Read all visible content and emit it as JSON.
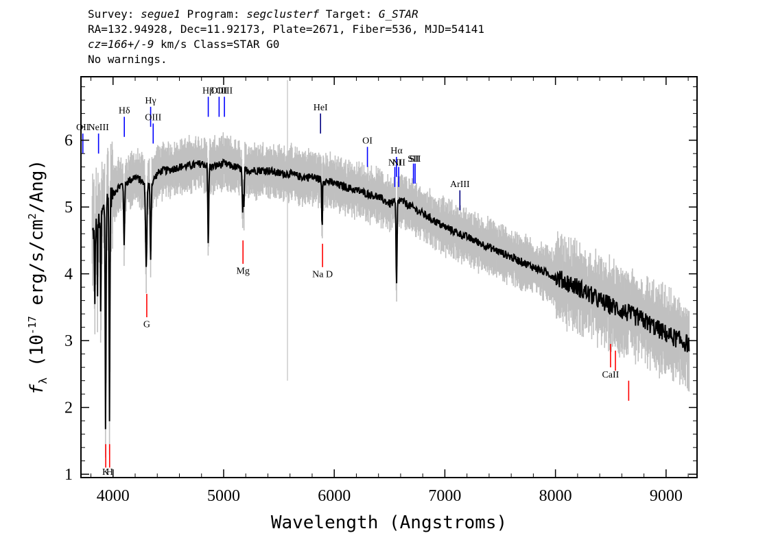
{
  "header": {
    "survey_label": "Survey: ",
    "survey": "segue1",
    "program_label": " Program: ",
    "program": "segclusterf",
    "target_label": " Target: ",
    "target": "G_STAR",
    "line2": "RA=132.94928, Dec=11.92173, Plate=2671, Fiber=536, MJD=54141",
    "cz": "cz=166+/-9",
    "cz_rest": " km/s Class=STAR G0",
    "warnings": "No warnings."
  },
  "chart_data": {
    "type": "line",
    "xlabel": "Wavelength (Angstroms)",
    "ylabel": "f_λ (10^-17 erg/s/cm^2/Ang)",
    "xlim": [
      3710,
      9280
    ],
    "ylim": [
      0.95,
      6.95
    ],
    "xticks": [
      4000,
      5000,
      6000,
      7000,
      8000,
      9000
    ],
    "yticks": [
      1,
      2,
      3,
      4,
      5,
      6
    ],
    "colors": {
      "data": "#000000",
      "error": "#c0c0c0",
      "emission": "#0000ff",
      "absorption": "#ff0000",
      "sky": "#000080"
    },
    "series": [
      {
        "role": "continuum",
        "x": [
          3810,
          3850,
          3900,
          3950,
          4000,
          4050,
          4100,
          4150,
          4200,
          4250,
          4300,
          4350,
          4400,
          4450,
          4500,
          4600,
          4700,
          4800,
          4900,
          5000,
          5100,
          5200,
          5300,
          5400,
          5500,
          5600,
          5700,
          5800,
          5900,
          6000,
          6100,
          6200,
          6300,
          6400,
          6500,
          6600,
          6700,
          6800,
          6900,
          7000,
          7200,
          7400,
          7600,
          7800,
          8000,
          8200,
          8400,
          8600,
          8800,
          9000,
          9200
        ],
        "y": [
          4.6,
          4.7,
          4.9,
          5.1,
          5.2,
          5.3,
          5.35,
          5.4,
          5.45,
          5.4,
          5.3,
          5.35,
          5.5,
          5.55,
          5.55,
          5.6,
          5.62,
          5.65,
          5.6,
          5.65,
          5.6,
          5.55,
          5.55,
          5.55,
          5.5,
          5.5,
          5.45,
          5.45,
          5.4,
          5.35,
          5.3,
          5.25,
          5.2,
          5.15,
          5.05,
          5.1,
          5.0,
          4.9,
          4.8,
          4.7,
          4.55,
          4.4,
          4.25,
          4.1,
          3.95,
          3.8,
          3.6,
          3.45,
          3.3,
          3.1,
          2.95
        ]
      }
    ],
    "absorption_features": [
      {
        "x": 3933,
        "depth": 3.4,
        "width": 5
      },
      {
        "x": 3968,
        "depth": 3.4,
        "width": 5
      },
      {
        "x": 3889,
        "depth": 1.6,
        "width": 4
      },
      {
        "x": 3835,
        "depth": 1.3,
        "width": 4
      },
      {
        "x": 3860,
        "depth": 1.0,
        "width": 3
      },
      {
        "x": 4101,
        "depth": 0.9,
        "width": 6
      },
      {
        "x": 4300,
        "depth": 1.2,
        "width": 8
      },
      {
        "x": 4340,
        "depth": 1.1,
        "width": 6
      },
      {
        "x": 4861,
        "depth": 1.2,
        "width": 6
      },
      {
        "x": 5172,
        "depth": 0.7,
        "width": 6
      },
      {
        "x": 5184,
        "depth": 0.6,
        "width": 4
      },
      {
        "x": 5890,
        "depth": 0.8,
        "width": 4
      },
      {
        "x": 6563,
        "depth": 1.3,
        "width": 6
      }
    ],
    "lines": [
      {
        "label": "Hδ",
        "x": 4102,
        "kind": "emission",
        "y1": 6.05,
        "y2": 6.35,
        "label_y": 6.4
      },
      {
        "label": "Hγ",
        "x": 4340,
        "kind": "emission",
        "y1": 6.2,
        "y2": 6.5,
        "label_y": 6.55
      },
      {
        "label": "OIII",
        "x": 4363,
        "kind": "emission",
        "y1": 5.95,
        "y2": 6.25,
        "label_y": 6.3
      },
      {
        "label": "NeIII",
        "x": 3869,
        "kind": "emission",
        "y1": 5.8,
        "y2": 6.1,
        "label_y": 6.15
      },
      {
        "label": "OII",
        "x": 3727,
        "kind": "emission",
        "y1": 5.8,
        "y2": 6.1,
        "label_y": 6.15
      },
      {
        "label": "Hβ",
        "x": 4861,
        "kind": "emission",
        "y1": 6.35,
        "y2": 6.65,
        "label_y": 6.7
      },
      {
        "label": "OIII",
        "x": 4959,
        "kind": "emission",
        "y1": 6.35,
        "y2": 6.65,
        "label_y": 6.7
      },
      {
        "label": "OIII",
        "x": 5007,
        "kind": "emission",
        "y1": 6.35,
        "y2": 6.65,
        "label_y": 6.7
      },
      {
        "label": "HeI",
        "x": 5876,
        "kind": "sky",
        "y1": 6.1,
        "y2": 6.4,
        "label_y": 6.45
      },
      {
        "label": "OI",
        "x": 6300,
        "kind": "emission",
        "y1": 5.6,
        "y2": 5.9,
        "label_y": 5.95
      },
      {
        "label": "NII",
        "x": 6548,
        "kind": "emission",
        "y1": 5.3,
        "y2": 5.6,
        "label_y": 5.62
      },
      {
        "label": "Hα",
        "x": 6563,
        "kind": "emission",
        "y1": 5.45,
        "y2": 5.75,
        "label_y": 5.8
      },
      {
        "label": "NII",
        "x": 6583,
        "kind": "emission",
        "y1": 5.3,
        "y2": 5.6,
        "label_y": 5.62
      },
      {
        "label": "SII",
        "x": 6716,
        "kind": "emission",
        "y1": 5.35,
        "y2": 5.65,
        "label_y": 5.68
      },
      {
        "label": "SII",
        "x": 6731,
        "kind": "emission",
        "y1": 5.35,
        "y2": 5.65,
        "label_y": 5.68
      },
      {
        "label": "ArIII",
        "x": 7136,
        "kind": "sky",
        "y1": 4.95,
        "y2": 5.25,
        "label_y": 5.3
      },
      {
        "label": "G",
        "x": 4305,
        "kind": "absorption",
        "y1": 3.35,
        "y2": 3.7,
        "label_y": 3.2
      },
      {
        "label": "Mg",
        "x": 5175,
        "kind": "absorption",
        "y1": 4.15,
        "y2": 4.5,
        "label_y": 4.0
      },
      {
        "label": "Na D",
        "x": 5894,
        "kind": "absorption",
        "y1": 4.1,
        "y2": 4.45,
        "label_y": 3.95
      },
      {
        "label": "K",
        "x": 3934,
        "kind": "absorption",
        "y1": 1.1,
        "y2": 1.45,
        "label_y": 0.99
      },
      {
        "label": "H",
        "x": 3969,
        "kind": "absorption",
        "y1": 1.1,
        "y2": 1.45,
        "label_y": 0.99
      },
      {
        "label": "CaII",
        "x": 8498,
        "kind": "absorption",
        "y1": 2.6,
        "y2": 2.95,
        "label_y": 2.45
      },
      {
        "label": "",
        "x": 8542,
        "kind": "absorption",
        "y1": 2.55,
        "y2": 2.85,
        "label_y": 2.45
      },
      {
        "label": "",
        "x": 8662,
        "kind": "absorption",
        "y1": 2.1,
        "y2": 2.4,
        "label_y": 2.45
      }
    ]
  }
}
